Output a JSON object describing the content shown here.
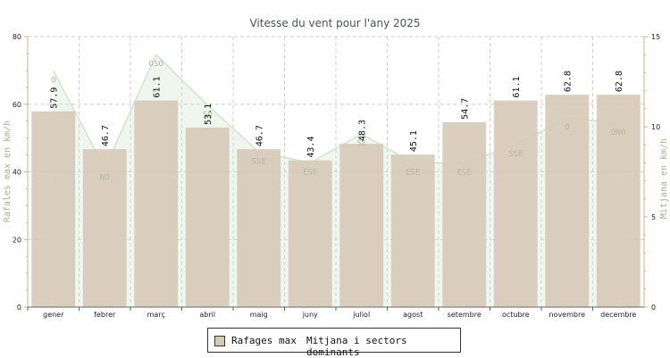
{
  "chart_data": {
    "type": "bar",
    "title": "Vitesse du vent pour l'any 2025",
    "ylabel_left": "Rafales max en km/h",
    "ylabel_right": "Mitjana en km/h",
    "ylim_left": [
      0,
      80
    ],
    "ylim_right": [
      0,
      15
    ],
    "yticks_left": [
      "0",
      "20",
      "40",
      "60",
      "80"
    ],
    "yticks_right": [
      "0",
      "5",
      "10",
      "15"
    ],
    "grid": true,
    "categories": [
      "gener",
      "febrer",
      "març",
      "abril",
      "maig",
      "juny",
      "juliol",
      "agost",
      "setembre",
      "octubre",
      "novembre",
      "decembre"
    ],
    "series": [
      {
        "name": "Rafages max",
        "type": "bar",
        "axis": "left",
        "color": "#d6cab7",
        "values": [
          57.9,
          46.7,
          61.1,
          53.1,
          46.7,
          43.4,
          48.3,
          45.1,
          54.7,
          61.1,
          62.8,
          62.8
        ],
        "labels": [
          "57.9",
          "46.7",
          "61.1",
          "53.1",
          "46.7",
          "43.4",
          "48.3",
          "45.1",
          "54.7",
          "61.1",
          "62.8",
          "62.8"
        ]
      },
      {
        "name": "Mitjana i sectors dominants",
        "type": "area",
        "axis": "right",
        "color": "#cfe6cc",
        "values": [
          13.1,
          7.7,
          14.0,
          11.2,
          8.6,
          8.0,
          9.6,
          8.0,
          8.0,
          9.0,
          10.5,
          10.2
        ],
        "sectors": [
          "O",
          "NO",
          "OSO",
          "SO",
          "SSE",
          "ESE",
          "SE",
          "ESE",
          "ESE",
          "SSE",
          "O",
          "ONO"
        ]
      }
    ],
    "legend": {
      "placement": "bottom",
      "entries": [
        "Rafages max",
        "Mitjana i sectors dominants"
      ]
    }
  }
}
